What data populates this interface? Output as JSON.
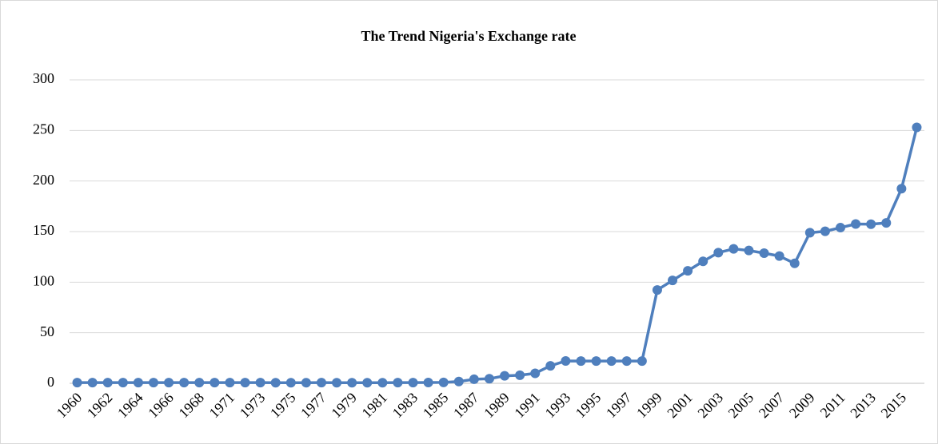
{
  "chart_data": {
    "type": "line",
    "title": "The Trend Nigeria's Exchange rate",
    "categories": [
      "1960",
      "1961",
      "1962",
      "1963",
      "1964",
      "1965",
      "1966",
      "1967",
      "1968",
      "1970",
      "1971",
      "1972",
      "1973",
      "1974",
      "1975",
      "1976",
      "1977",
      "1978",
      "1979",
      "1980",
      "1981",
      "1982",
      "1983",
      "1984",
      "1985",
      "1986",
      "1987",
      "1988",
      "1989",
      "1990",
      "1991",
      "1992",
      "1993",
      "1994",
      "1995",
      "1996",
      "1997",
      "1998",
      "1999",
      "2000",
      "2001",
      "2002",
      "2003",
      "2004",
      "2005",
      "2006",
      "2007",
      "2008",
      "2009",
      "2010",
      "2011",
      "2012",
      "2013",
      "2014",
      "2015",
      "2016"
    ],
    "series": [
      {
        "name": "Exchange rate",
        "color": "#4f7fbd",
        "values": [
          0.71,
          0.71,
          0.71,
          0.71,
          0.71,
          0.71,
          0.71,
          0.71,
          0.71,
          0.71,
          0.7,
          0.66,
          0.66,
          0.63,
          0.62,
          0.63,
          0.65,
          0.61,
          0.6,
          0.55,
          0.61,
          0.67,
          0.72,
          0.77,
          0.89,
          1.75,
          4.0,
          4.5,
          7.4,
          8.0,
          9.9,
          17.3,
          22.1,
          22.0,
          22.0,
          22.0,
          22.0,
          22.0,
          92.3,
          101.7,
          111.2,
          120.6,
          129.2,
          132.9,
          131.3,
          128.7,
          125.8,
          118.6,
          148.9,
          150.3,
          153.9,
          157.5,
          157.3,
          158.6,
          192.4,
          253.0
        ]
      }
    ],
    "ylim": [
      0,
      300
    ],
    "yticks": [
      0,
      50,
      100,
      150,
      200,
      250,
      300
    ],
    "grid": true,
    "x_label_every": 2
  }
}
